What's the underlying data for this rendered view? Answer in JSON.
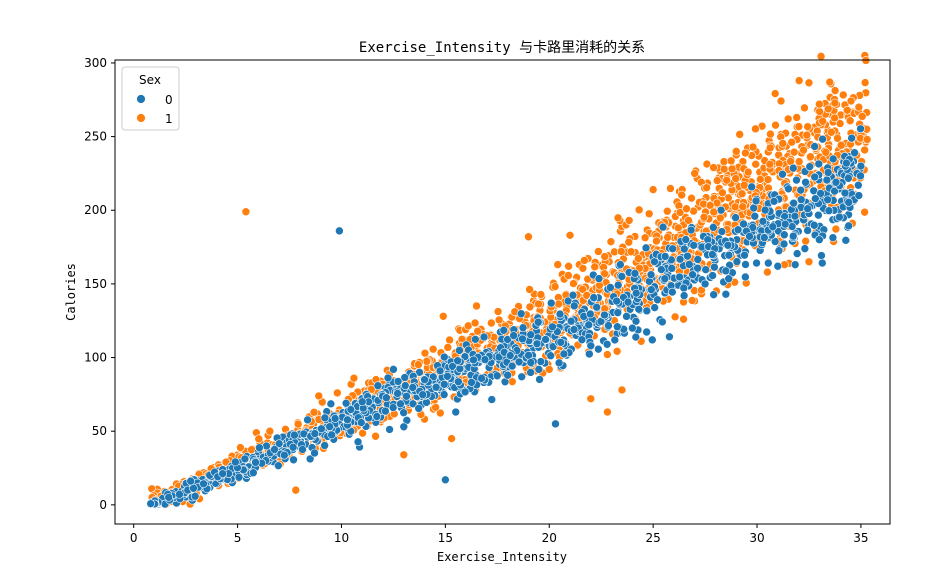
{
  "chart_data": {
    "type": "scatter",
    "title": "Exercise_Intensity 与卡路里消耗的关系",
    "xlabel": "Exercise_Intensity",
    "ylabel": "Calories",
    "xlim": [
      -0.9,
      36.4
    ],
    "ylim": [
      -13,
      302
    ],
    "xticks": [
      0,
      5,
      10,
      15,
      20,
      25,
      30,
      35
    ],
    "yticks": [
      0,
      50,
      100,
      150,
      200,
      250,
      300
    ],
    "grid": false,
    "legend": {
      "title": "Sex",
      "placement": "top-left",
      "entries": [
        {
          "label": "0",
          "color": "#1f77b4"
        },
        {
          "label": "1",
          "color": "#ff7f0e"
        }
      ]
    },
    "series": [
      {
        "name": "0",
        "color": "#1f77b4",
        "trend": [
          [
            0.8,
            2
          ],
          [
            2,
            6
          ],
          [
            4,
            18
          ],
          [
            6,
            30
          ],
          [
            8,
            42
          ],
          [
            10,
            56
          ],
          [
            12,
            68
          ],
          [
            14,
            80
          ],
          [
            16,
            92
          ],
          [
            18,
            102
          ],
          [
            20,
            112
          ],
          [
            22,
            122
          ],
          [
            24,
            140
          ],
          [
            26,
            158
          ],
          [
            28,
            172
          ],
          [
            30,
            186
          ],
          [
            32,
            198
          ],
          [
            35,
            220
          ]
        ],
        "points": [
          [
            9.9,
            186
          ],
          [
            20.3,
            55
          ],
          [
            15.0,
            17
          ],
          [
            34.9,
            210
          ],
          [
            35.0,
            230
          ],
          [
            34.3,
            232
          ],
          [
            33.0,
            180
          ],
          [
            31.0,
            162
          ],
          [
            28.5,
            143
          ],
          [
            27.5,
            150
          ],
          [
            24.0,
            120
          ],
          [
            22.0,
            108
          ],
          [
            19.5,
            92
          ],
          [
            18.0,
            88
          ],
          [
            15.5,
            63
          ],
          [
            13.0,
            53
          ],
          [
            11.0,
            70
          ],
          [
            12.5,
            92
          ],
          [
            14.0,
            85
          ]
        ]
      },
      {
        "name": "1",
        "color": "#ff7f0e",
        "trend": [
          [
            0.8,
            3
          ],
          [
            2,
            8
          ],
          [
            4,
            20
          ],
          [
            6,
            33
          ],
          [
            8,
            46
          ],
          [
            10,
            58
          ],
          [
            12,
            70
          ],
          [
            14,
            82
          ],
          [
            16,
            96
          ],
          [
            18,
            108
          ],
          [
            20,
            125
          ],
          [
            22,
            140
          ],
          [
            24,
            157
          ],
          [
            26,
            175
          ],
          [
            28,
            193
          ],
          [
            30,
            210
          ],
          [
            32,
            228
          ],
          [
            34,
            243
          ],
          [
            35.3,
            252
          ]
        ],
        "points": [
          [
            5.4,
            199
          ],
          [
            19.0,
            182
          ],
          [
            33.5,
            287
          ],
          [
            34.9,
            270
          ],
          [
            35.3,
            248
          ],
          [
            33.0,
            272
          ],
          [
            31.5,
            262
          ],
          [
            25.0,
            214
          ],
          [
            21.0,
            183
          ],
          [
            22.8,
            63
          ],
          [
            22.0,
            72
          ],
          [
            23.5,
            78
          ],
          [
            20.0,
            92
          ],
          [
            18.5,
            108
          ],
          [
            15.3,
            45
          ],
          [
            13.0,
            34
          ],
          [
            9.8,
            76
          ],
          [
            10.6,
            86
          ],
          [
            7.8,
            10
          ],
          [
            16.5,
            135
          ],
          [
            14.9,
            128
          ],
          [
            27.0,
            225
          ],
          [
            29.0,
            240
          ],
          [
            30.5,
            158
          ],
          [
            32.5,
            165
          ]
        ]
      }
    ]
  }
}
